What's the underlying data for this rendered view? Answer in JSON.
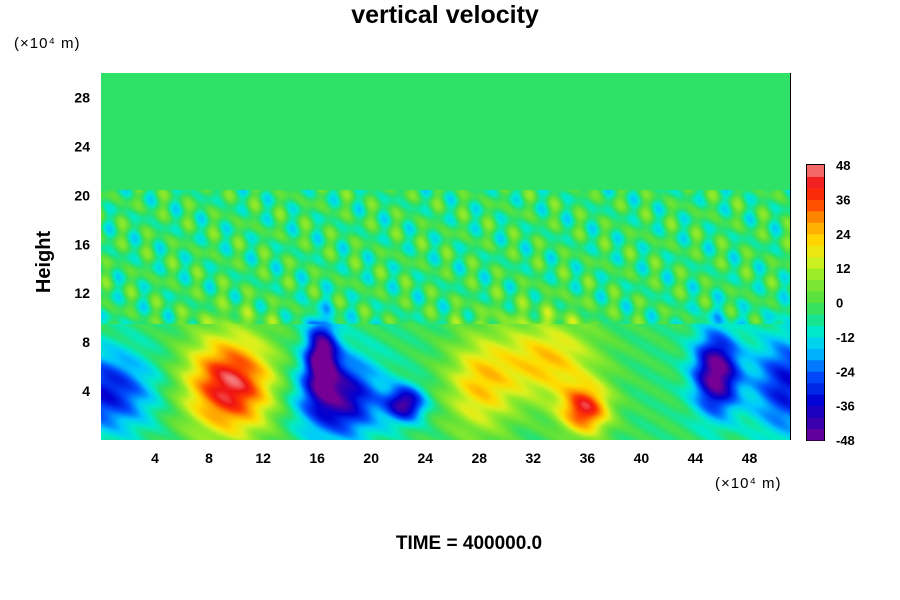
{
  "chart_data": {
    "type": "heatmap",
    "title": "vertical velocity",
    "ylabel": "Height",
    "xlabel": "",
    "x_unit": "(×10⁴ m)",
    "y_unit": "(×10⁴ m)",
    "xlim": [
      0,
      51
    ],
    "ylim": [
      0,
      30
    ],
    "x_ticks": [
      4,
      8,
      12,
      16,
      20,
      24,
      28,
      32,
      36,
      40,
      44,
      48
    ],
    "y_ticks": [
      4,
      8,
      12,
      16,
      20,
      24,
      28
    ],
    "colorbar": {
      "min": -48,
      "max": 48,
      "ticks": [
        48,
        36,
        24,
        12,
        0,
        -12,
        -24,
        -36,
        -48
      ],
      "colormap": "rainbow (purple-blue-cyan-green-yellow-orange-red-pink)"
    },
    "features": [
      {
        "x": 9.5,
        "y": 4.5,
        "value": 48
      },
      {
        "x": 35.8,
        "y": 2.5,
        "value": 42
      },
      {
        "x": 33.0,
        "y": 6.5,
        "value": 26
      },
      {
        "x": 28.0,
        "y": 4.5,
        "value": 24
      },
      {
        "x": 17.5,
        "y": 3.5,
        "value": -40
      },
      {
        "x": 22.5,
        "y": 3.0,
        "value": -40
      },
      {
        "x": 16.3,
        "y": 7.0,
        "value": -44
      },
      {
        "x": 45.5,
        "y": 5.5,
        "value": -48
      },
      {
        "x": 0.3,
        "y": 4.0,
        "value": -30
      },
      {
        "x": 50.7,
        "y": 4.5,
        "value": -30
      }
    ],
    "footer": "TIME = 400000.0"
  }
}
